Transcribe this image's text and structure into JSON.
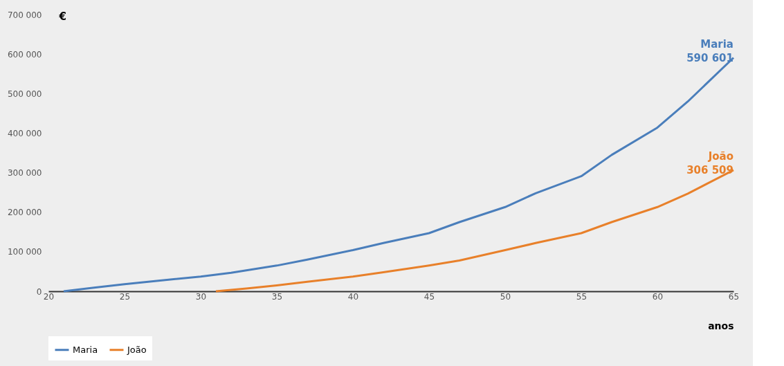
{
  "chart_data": {
    "type": "line",
    "ylabel": "€",
    "xlabel": "anos",
    "x": [
      21,
      23,
      25,
      27,
      30,
      32,
      35,
      37,
      40,
      42,
      45,
      47,
      50,
      52,
      55,
      57,
      60,
      62,
      65
    ],
    "series": [
      {
        "name": "Maria",
        "color": "#4a7ebb",
        "values": [
          0,
          9000,
          18000,
          26000,
          37000,
          47000,
          65000,
          80000,
          104000,
          122000,
          147000,
          175000,
          213000,
          248000,
          291000,
          345000,
          414000,
          480000,
          590601
        ]
      },
      {
        "name": "João",
        "color": "#e8802a",
        "x": [
          31,
          33,
          35,
          37,
          40,
          42,
          45,
          47,
          50,
          52,
          55,
          57,
          60,
          62,
          65
        ],
        "values": [
          0,
          7000,
          15000,
          24000,
          37000,
          48000,
          65000,
          78000,
          104000,
          122000,
          147000,
          175000,
          213000,
          247000,
          306509
        ]
      }
    ],
    "xlim": [
      20,
      65
    ],
    "xticks": [
      20,
      25,
      30,
      35,
      40,
      45,
      50,
      55,
      60,
      65
    ],
    "ylim": [
      0,
      700000
    ],
    "yticks": [
      {
        "value": 0,
        "label": "0"
      },
      {
        "value": 100000,
        "label": "100 000"
      },
      {
        "value": 200000,
        "label": "200 000"
      },
      {
        "value": 300000,
        "label": "300 000"
      },
      {
        "value": 400000,
        "label": "400 000"
      },
      {
        "value": 500000,
        "label": "500 000"
      },
      {
        "value": 600000,
        "label": "600 000"
      },
      {
        "value": 700000,
        "label": "700 000"
      }
    ],
    "annotations": [
      {
        "text": "Maria\n590 601",
        "x": 65,
        "y": 590601
      },
      {
        "text": "João\n306 509",
        "x": 65,
        "y": 306509
      }
    ],
    "legend": "bottom",
    "grid": false
  }
}
